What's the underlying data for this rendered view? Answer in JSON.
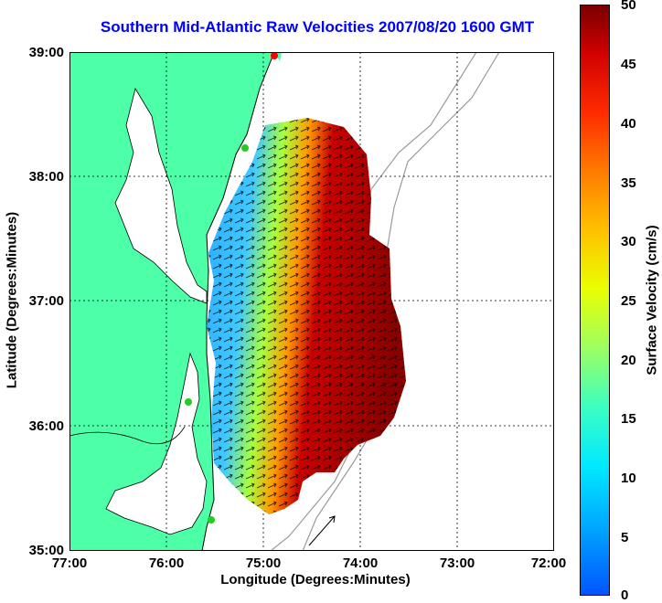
{
  "title": "Southern Mid-Atlantic Raw Velocities 2007/08/20 1600 GMT",
  "xlabel": "Longitude (Degrees:Minutes)",
  "ylabel": "Latitude (Degrees:Minutes)",
  "colorbar_label": "Surface Velocity (cm/s)",
  "x_ticks": [
    "77:00",
    "76:00",
    "75:00",
    "74:00",
    "73:00",
    "72:00"
  ],
  "y_ticks": [
    "39:00",
    "38:00",
    "37:00",
    "36:00",
    "35:00"
  ],
  "colorbar_ticks": [
    "50",
    "45",
    "40",
    "35",
    "30",
    "25",
    "20",
    "15",
    "10",
    "5",
    "0"
  ],
  "colors": {
    "land": "#4dffa6",
    "coastline": "#000000",
    "bathymetry": "#9a9a9a",
    "title": "#0000ff",
    "station_green": "#22cc22",
    "station_red": "#ff0000"
  },
  "chart_data": {
    "type": "heatmap",
    "title": "Southern Mid-Atlantic Raw Velocities 2007/08/20 1600 GMT",
    "xlabel": "Longitude (Degrees:Minutes)",
    "ylabel": "Latitude (Degrees:Minutes)",
    "xlim": [
      -77,
      -72
    ],
    "ylim": [
      35,
      39
    ],
    "colorbar": {
      "label": "Surface Velocity (cm/s)",
      "range": [
        0,
        50
      ]
    },
    "grid": true
  }
}
